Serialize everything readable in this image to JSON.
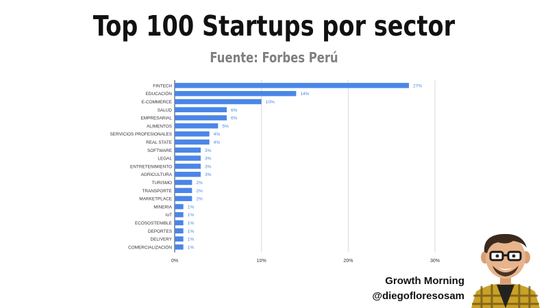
{
  "header": {
    "title": "Top 100 Startups por sector",
    "subtitle": "Fuente: Forbes Perú"
  },
  "footer": {
    "brand": "Growth Morning",
    "handle": "@diegofloresosam"
  },
  "colors": {
    "bar": "#4a86e8",
    "label": "#4a86e8",
    "grid": "#d9d9d9",
    "text": "#333333"
  },
  "chart_data": {
    "type": "bar",
    "orientation": "horizontal",
    "title": "",
    "xlabel": "",
    "ylabel": "",
    "categories": [
      "FINTECH",
      "EDUCACIÓN",
      "E-COMMERCE",
      "SALUD",
      "EMPRESARIAL",
      "ALIMENTOS",
      "SERVICIOS PROFESIONALES",
      "REAL STATE",
      "SOFTWARE",
      "LEGAL",
      "ENTRETENIMIENTO",
      "AGRICULTURA",
      "TURISMO",
      "TRANSPORTE",
      "MARKETPLACE",
      "MINERIA",
      "IoT",
      "ECOSOSTENIBLE",
      "DEPORTES",
      "DELIVERY",
      "COMERCIALIZACIÓN"
    ],
    "values": [
      27,
      14,
      10,
      6,
      6,
      5,
      4,
      4,
      3,
      3,
      3,
      3,
      2,
      2,
      2,
      1,
      1,
      1,
      1,
      1,
      1
    ],
    "data_labels": [
      "27%",
      "14%",
      "10%",
      "6%",
      "6%",
      "5%",
      "4%",
      "4%",
      "3%",
      "3%",
      "3%",
      "3%",
      "2%",
      "2%",
      "2%",
      "1%",
      "1%",
      "1%",
      "1%",
      "1%",
      "1%"
    ],
    "xlim": [
      0,
      30
    ],
    "x_ticks": [
      0,
      10,
      20,
      30
    ],
    "x_tick_labels": [
      "0%",
      "10%",
      "20%",
      "30%"
    ],
    "grid": true,
    "legend": "none"
  }
}
